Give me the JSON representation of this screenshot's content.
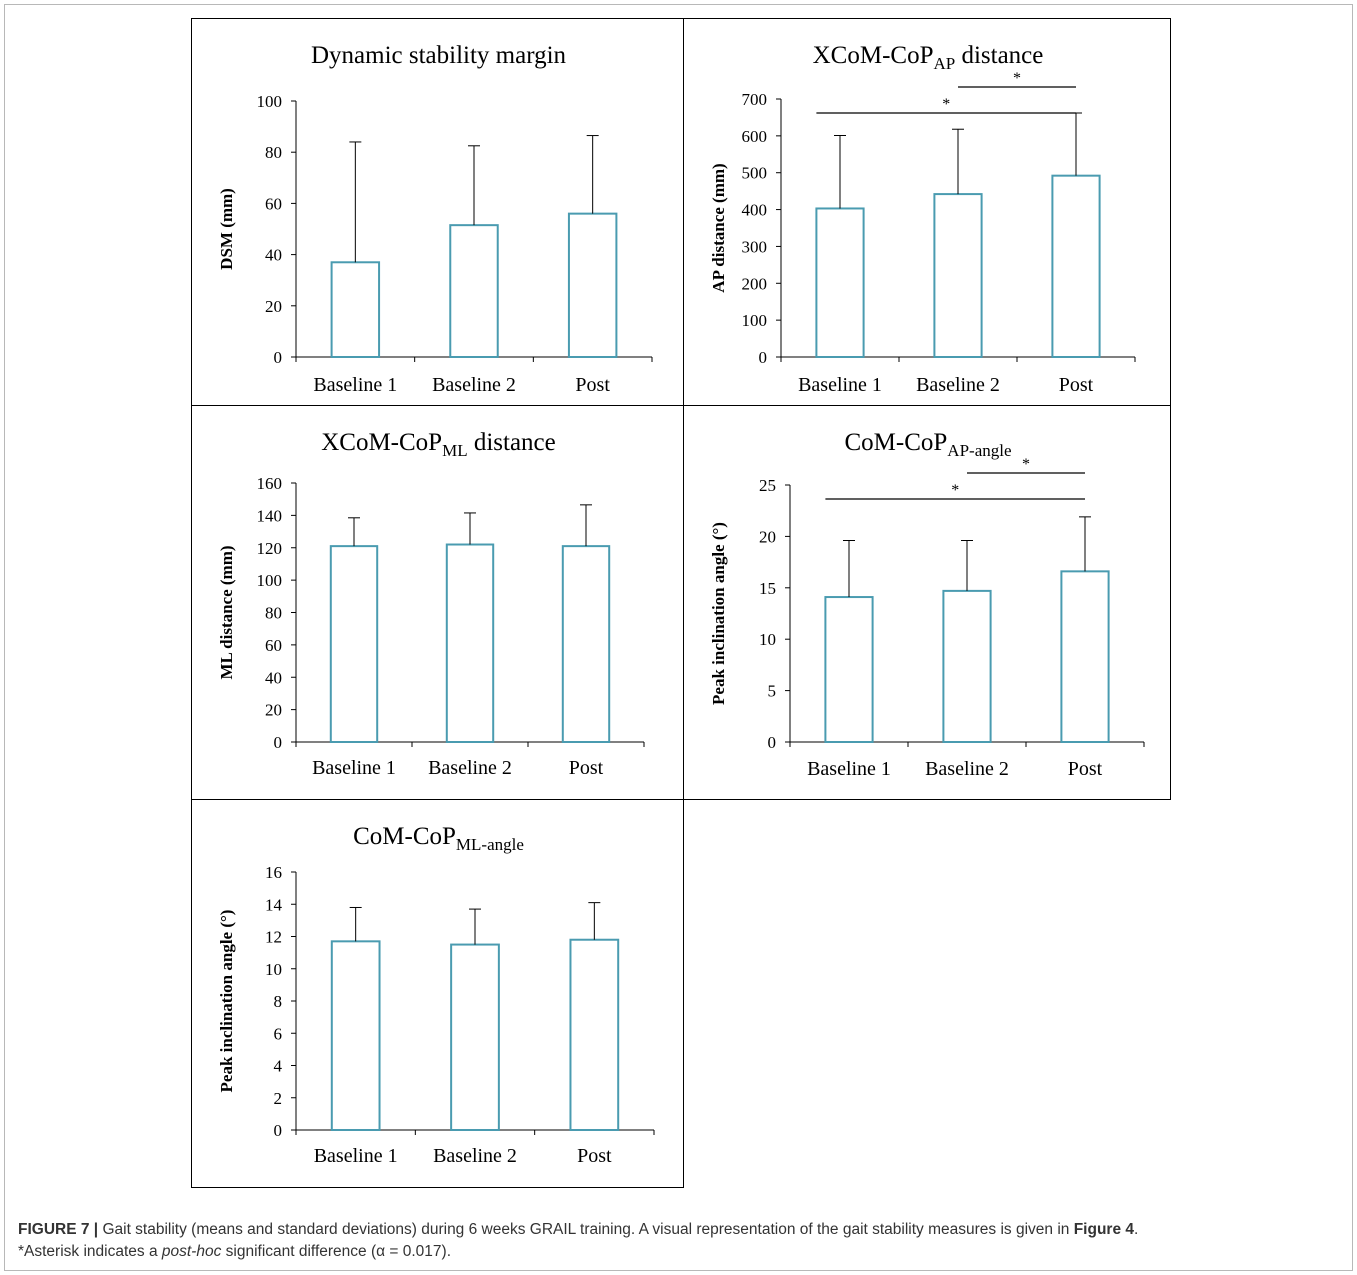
{
  "figure": {
    "caption": {
      "label": "FIGURE 7 |",
      "line1_text": " Gait stability (means and standard deviations) during 6 weeks GRAIL training. A visual representation of the gait stability measures is given in ",
      "line1_ref": "Figure 4",
      "line1_end": ".",
      "line2_start": "*Asterisk indicates a ",
      "line2_italic": "post-hoc",
      "line2_end": " significant difference (α = 0.017)."
    }
  },
  "colors": {
    "bar_stroke": "#4a9bb0",
    "axis": "#000000",
    "text": "#000000"
  },
  "chart_data": [
    {
      "type": "bar",
      "title_main": "Dynamic stability margin",
      "title_sub": "",
      "title_suffix": "",
      "ylabel": "DSM (mm)",
      "categories": [
        "Baseline 1",
        "Baseline 2",
        "Post"
      ],
      "values": [
        37,
        51.5,
        56
      ],
      "errors": [
        47,
        31,
        30.5
      ],
      "ylim": [
        0,
        100
      ],
      "yticks": [
        0,
        20,
        40,
        60,
        80,
        100
      ],
      "significance": []
    },
    {
      "type": "bar",
      "title_main": "XCoM-CoP",
      "title_sub": "AP",
      "title_suffix": " distance",
      "ylabel": "AP distance (mm)",
      "categories": [
        "Baseline 1",
        "Baseline 2",
        "Post"
      ],
      "values": [
        403,
        442,
        492
      ],
      "errors": [
        198,
        176,
        170
      ],
      "ylim": [
        0,
        700
      ],
      "yticks": [
        0,
        100,
        200,
        300,
        400,
        500,
        600,
        700
      ],
      "significance": [
        {
          "from": 1,
          "to": 2,
          "label": "*"
        },
        {
          "from": 0,
          "to": 2,
          "label": "*"
        }
      ]
    },
    {
      "type": "bar",
      "title_main": "XCoM-CoP",
      "title_sub": "ML",
      "title_suffix": " distance",
      "ylabel": "ML distance (mm)",
      "categories": [
        "Baseline 1",
        "Baseline 2",
        "Post"
      ],
      "values": [
        121,
        122,
        121
      ],
      "errors": [
        17.5,
        19.5,
        25.5
      ],
      "ylim": [
        0,
        160
      ],
      "yticks": [
        0,
        20,
        40,
        60,
        80,
        100,
        120,
        140,
        160
      ],
      "significance": []
    },
    {
      "type": "bar",
      "title_main": "CoM-CoP",
      "title_sub": "AP-angle",
      "title_suffix": "",
      "ylabel": "Peak inclination angle (°)",
      "categories": [
        "Baseline 1",
        "Baseline 2",
        "Post"
      ],
      "values": [
        14.1,
        14.7,
        16.6
      ],
      "errors": [
        5.5,
        4.9,
        5.3
      ],
      "ylim": [
        0,
        25
      ],
      "yticks": [
        0,
        5,
        10,
        15,
        20,
        25
      ],
      "significance": [
        {
          "from": 1,
          "to": 2,
          "label": "*"
        },
        {
          "from": 0,
          "to": 2,
          "label": "*"
        }
      ]
    },
    {
      "type": "bar",
      "title_main": "CoM-CoP",
      "title_sub": "ML-angle",
      "title_suffix": "",
      "ylabel": "Peak inclination angle (°)",
      "categories": [
        "Baseline 1",
        "Baseline 2",
        "Post"
      ],
      "values": [
        11.7,
        11.5,
        11.8
      ],
      "errors": [
        2.1,
        2.2,
        2.3
      ],
      "ylim": [
        0,
        16
      ],
      "yticks": [
        0,
        2,
        4,
        6,
        8,
        10,
        12,
        14,
        16
      ],
      "significance": []
    }
  ]
}
